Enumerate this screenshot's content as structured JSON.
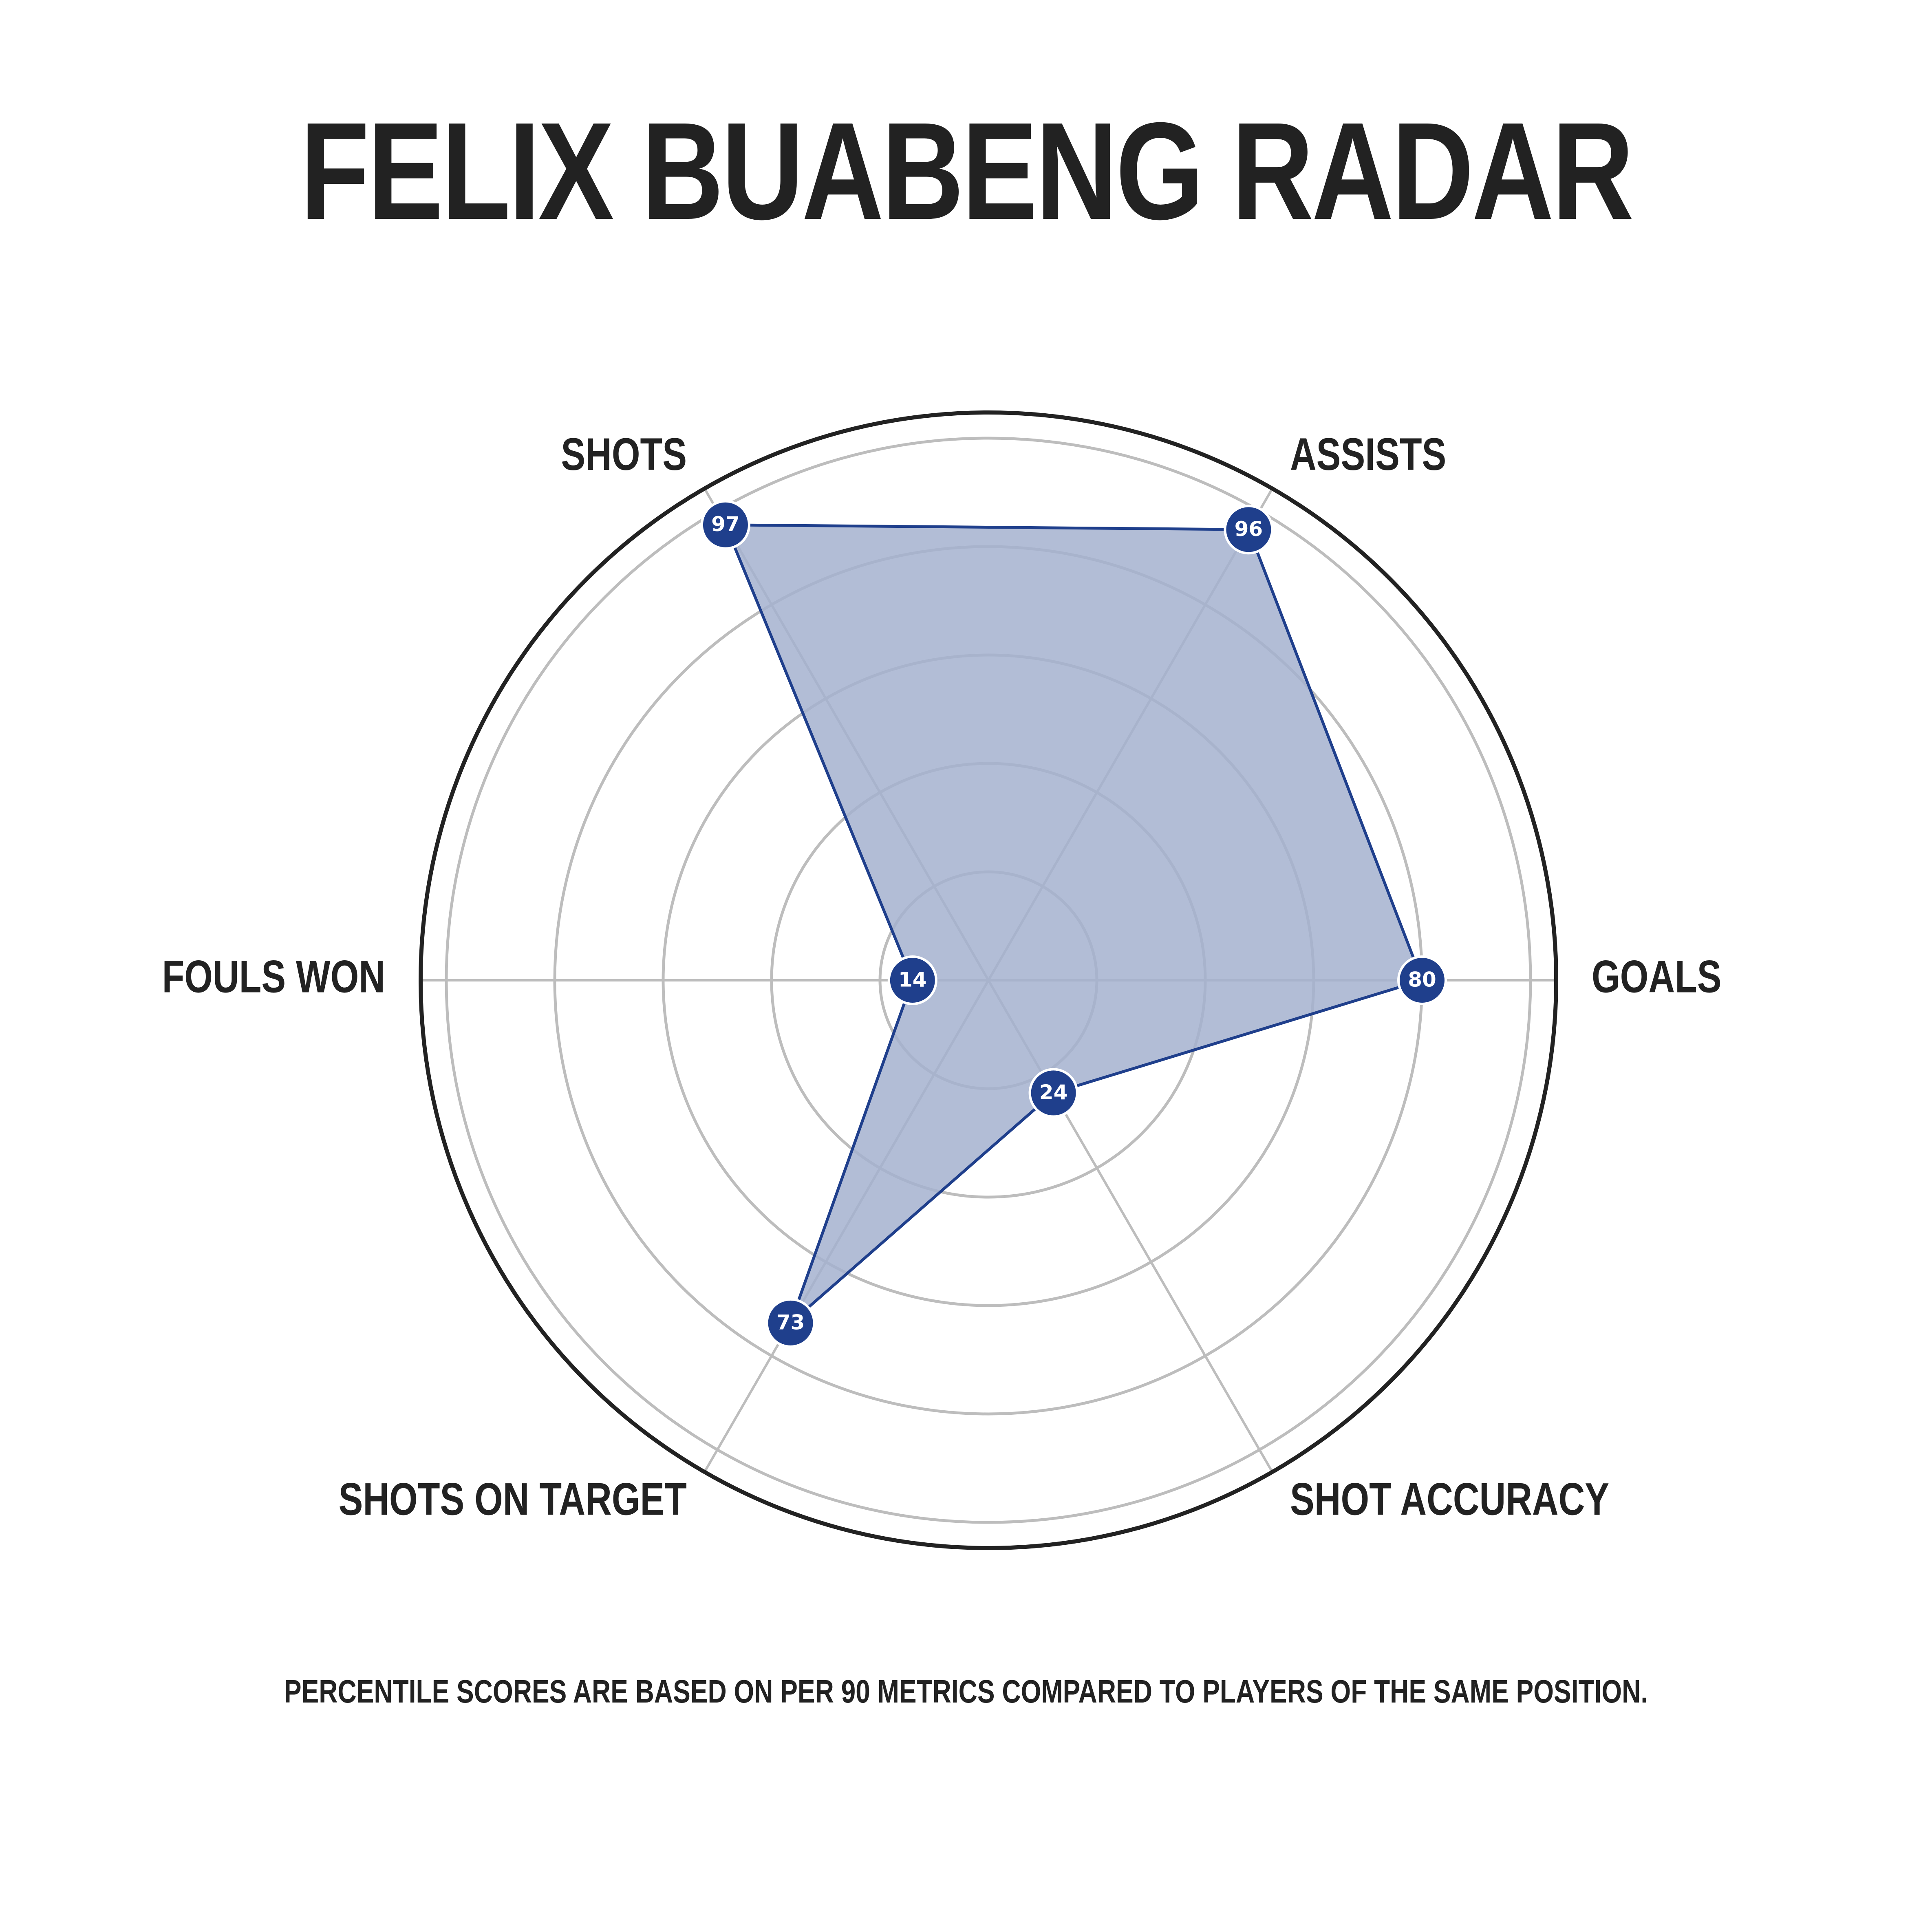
{
  "title": "FELIX BUABENG RADAR",
  "footnote": "PERCENTILE SCORES ARE BASED ON PER 90 METRICS COMPARED TO PLAYERS OF THE SAME POSITION.",
  "chart_data": {
    "type": "radar",
    "title": "FELIX BUABENG RADAR",
    "axes": [
      "GOALS",
      "ASSISTS",
      "SHOTS",
      "FOULS WON",
      "SHOTS ON TARGET",
      "SHOT ACCURACY"
    ],
    "values": [
      80,
      96,
      97,
      14,
      73,
      24
    ],
    "range": [
      0,
      100
    ],
    "grid_rings": [
      20,
      40,
      60,
      80,
      100
    ],
    "grid": true,
    "fill_color": "#A4B2CF",
    "line_color": "#1F3F8C",
    "marker_color": "#1F3F8C",
    "grid_color": "#BDBDBD",
    "outer_ring_color": "#222222"
  }
}
